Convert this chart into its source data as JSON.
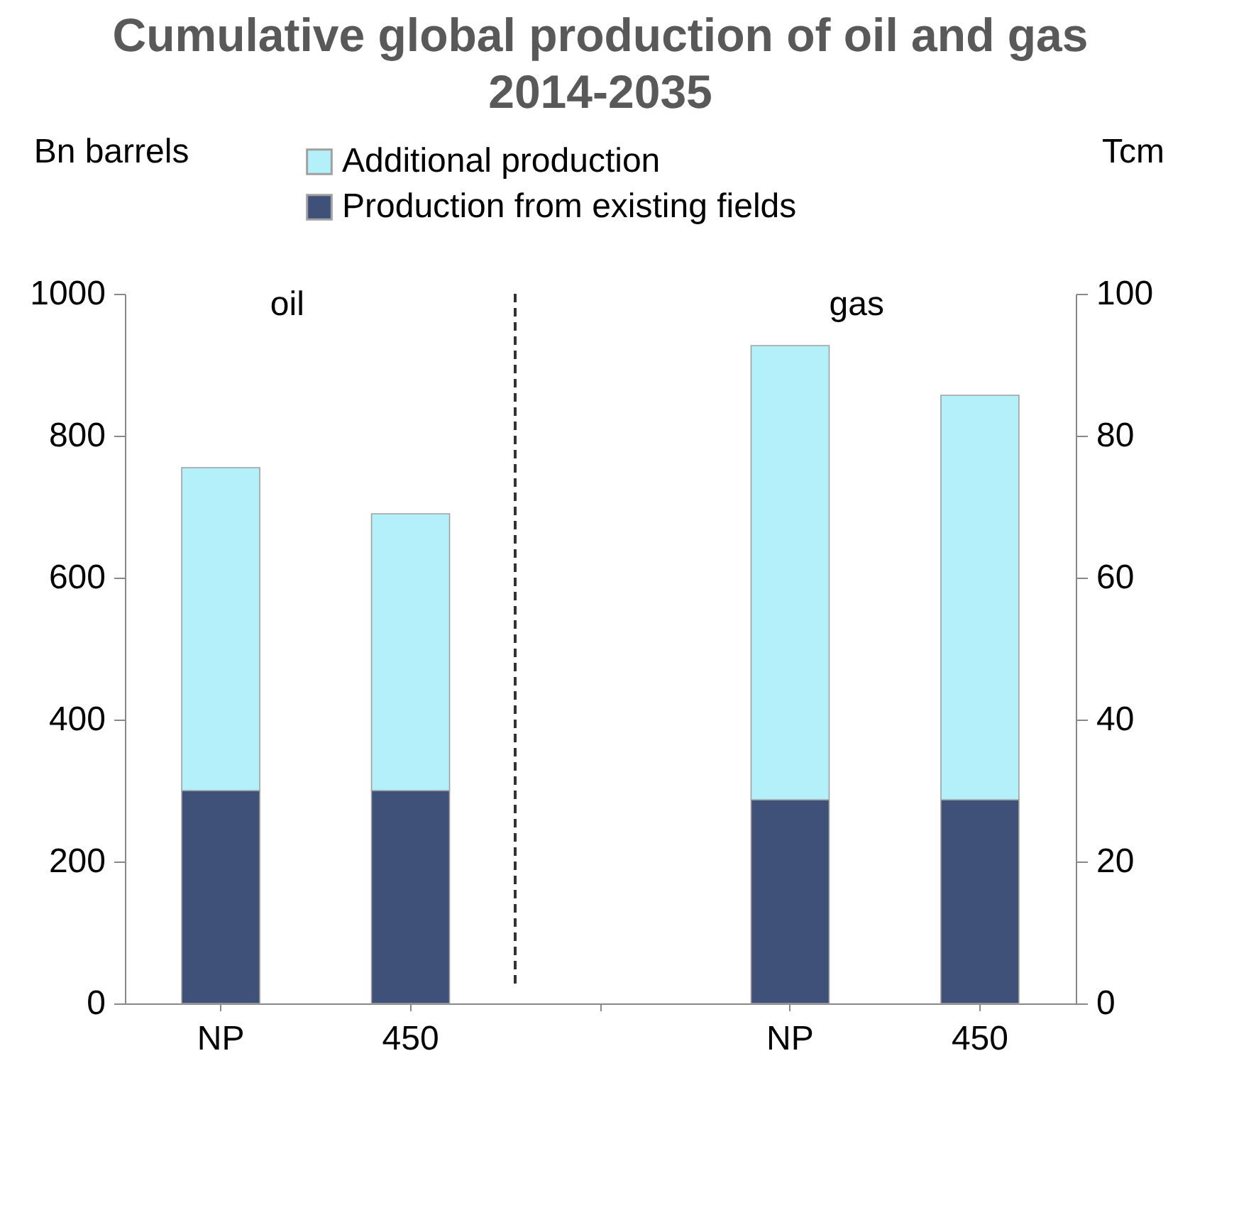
{
  "chart_data": {
    "type": "bar",
    "title": "Cumulative global production of oil and gas 2014-2035",
    "ylabel": "Bn barrels",
    "y2label": "Tcm",
    "categories": [
      "NP",
      "450",
      null,
      "NP",
      "450"
    ],
    "stacked": true,
    "series": [
      {
        "name": "Production from existing fields",
        "color": "#3f5079",
        "values": [
          300,
          300,
          null,
          null,
          null
        ]
      },
      {
        "name": "Additional production",
        "color": "#b3f0f9",
        "values": [
          455,
          390,
          null,
          null,
          null
        ]
      },
      {
        "color": "#3f5079",
        "axis": "y2",
        "values": [
          null,
          null,
          null,
          28.7,
          28.7
        ]
      },
      {
        "color": "#b3f0f9",
        "axis": "y2",
        "values": [
          null,
          null,
          null,
          64,
          57
        ]
      }
    ],
    "ylim": [
      0,
      1000
    ],
    "yticks": [
      0,
      200,
      400,
      600,
      800,
      1000
    ],
    "y2lim": [
      0,
      100
    ],
    "y2ticks": [
      0,
      20,
      40,
      60,
      80,
      100
    ],
    "annotations": [
      "oil",
      "gas"
    ],
    "legend": "top",
    "grid": false
  }
}
